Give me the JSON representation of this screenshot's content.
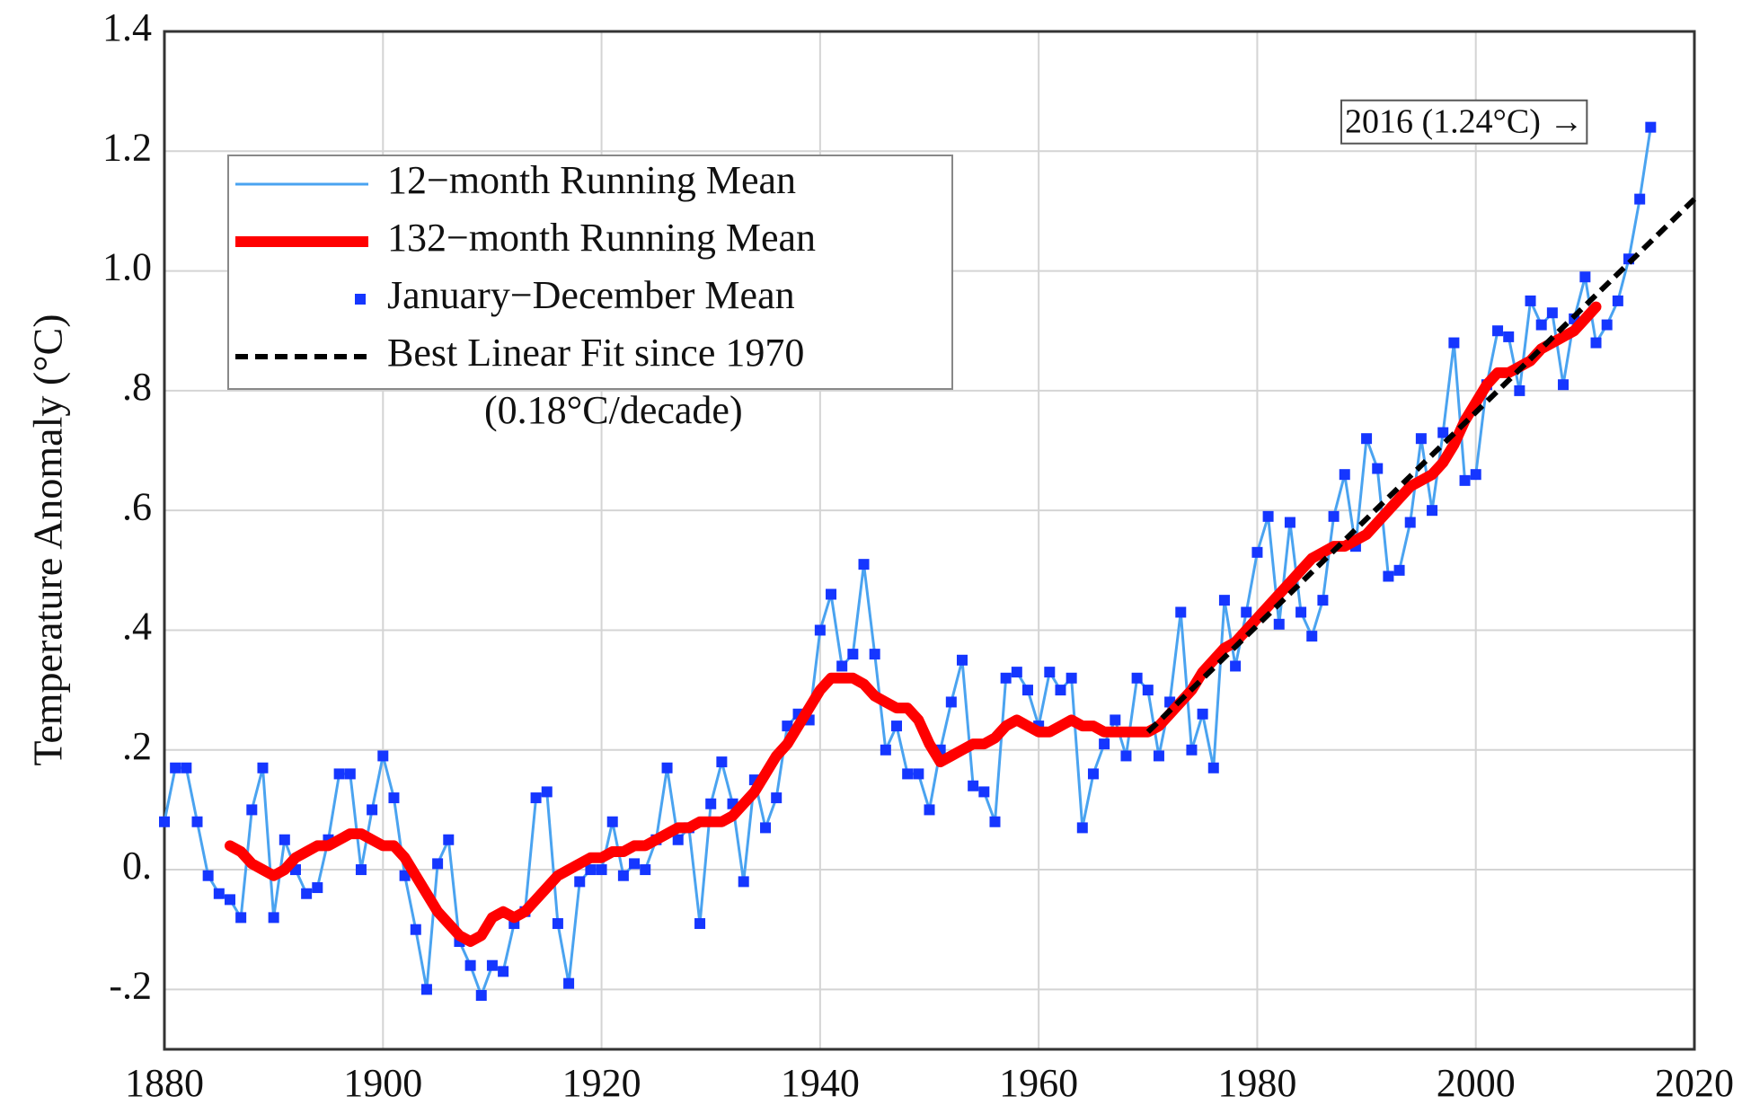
{
  "chart_data": {
    "type": "line",
    "y_label": "Temperature Anomaly (°C)",
    "xlim": [
      1880,
      2020
    ],
    "xticks": [
      1880,
      1900,
      1920,
      1940,
      1960,
      1980,
      2000,
      2020
    ],
    "ylim": [
      -0.3,
      1.4
    ],
    "yticks": [
      {
        "value": -0.2,
        "label": "-.2"
      },
      {
        "value": 0,
        "label": "0."
      },
      {
        "value": 0.2,
        "label": ".2"
      },
      {
        "value": 0.4,
        "label": ".4"
      },
      {
        "value": 0.6,
        "label": ".6"
      },
      {
        "value": 0.8,
        "label": ".8"
      },
      {
        "value": 1.0,
        "label": "1.0"
      },
      1.2,
      1.4
    ],
    "grid": true,
    "legend": "upper left",
    "x": [
      1880,
      1881,
      1882,
      1883,
      1884,
      1885,
      1886,
      1887,
      1888,
      1889,
      1890,
      1891,
      1892,
      1893,
      1894,
      1895,
      1896,
      1897,
      1898,
      1899,
      1900,
      1901,
      1902,
      1903,
      1904,
      1905,
      1906,
      1907,
      1908,
      1909,
      1910,
      1911,
      1912,
      1913,
      1914,
      1915,
      1916,
      1917,
      1918,
      1919,
      1920,
      1921,
      1922,
      1923,
      1924,
      1925,
      1926,
      1927,
      1928,
      1929,
      1930,
      1931,
      1932,
      1933,
      1934,
      1935,
      1936,
      1937,
      1938,
      1939,
      1940,
      1941,
      1942,
      1943,
      1944,
      1945,
      1946,
      1947,
      1948,
      1949,
      1950,
      1951,
      1952,
      1953,
      1954,
      1955,
      1956,
      1957,
      1958,
      1959,
      1960,
      1961,
      1962,
      1963,
      1964,
      1965,
      1966,
      1967,
      1968,
      1969,
      1970,
      1971,
      1972,
      1973,
      1974,
      1975,
      1976,
      1977,
      1978,
      1979,
      1980,
      1981,
      1982,
      1983,
      1984,
      1985,
      1986,
      1987,
      1988,
      1989,
      1990,
      1991,
      1992,
      1993,
      1994,
      1995,
      1996,
      1997,
      1998,
      1999,
      2000,
      2001,
      2002,
      2003,
      2004,
      2005,
      2006,
      2007,
      2008,
      2009,
      2010,
      2011,
      2012,
      2013,
      2014,
      2015,
      2016
    ],
    "series": [
      {
        "name": "12−month Running Mean",
        "color": "#4aa3f0",
        "style": "line",
        "values": [
          0.08,
          0.17,
          0.17,
          0.08,
          -0.01,
          -0.04,
          -0.05,
          -0.08,
          0.1,
          0.17,
          -0.08,
          0.05,
          0.0,
          -0.04,
          -0.03,
          0.05,
          0.16,
          0.16,
          0.0,
          0.1,
          0.19,
          0.12,
          -0.01,
          -0.1,
          -0.2,
          0.01,
          0.05,
          -0.12,
          -0.16,
          -0.21,
          -0.16,
          -0.17,
          -0.09,
          -0.07,
          0.12,
          0.13,
          -0.09,
          -0.19,
          -0.02,
          0.0,
          0.0,
          0.08,
          -0.01,
          0.01,
          0.0,
          0.05,
          0.17,
          0.05,
          0.07,
          -0.09,
          0.11,
          0.18,
          0.11,
          -0.02,
          0.15,
          0.07,
          0.12,
          0.24,
          0.26,
          0.25,
          0.4,
          0.46,
          0.34,
          0.36,
          0.51,
          0.36,
          0.2,
          0.24,
          0.16,
          0.16,
          0.1,
          0.2,
          0.28,
          0.35,
          0.14,
          0.13,
          0.08,
          0.32,
          0.33,
          0.3,
          0.24,
          0.33,
          0.3,
          0.32,
          0.07,
          0.16,
          0.21,
          0.25,
          0.19,
          0.32,
          0.3,
          0.19,
          0.28,
          0.43,
          0.2,
          0.26,
          0.17,
          0.45,
          0.34,
          0.43,
          0.53,
          0.59,
          0.41,
          0.58,
          0.43,
          0.39,
          0.45,
          0.59,
          0.66,
          0.54,
          0.72,
          0.67,
          0.49,
          0.5,
          0.58,
          0.72,
          0.6,
          0.73,
          0.88,
          0.65,
          0.66,
          0.81,
          0.9,
          0.89,
          0.8,
          0.95,
          0.91,
          0.93,
          0.81,
          0.92,
          0.99,
          0.88,
          0.91,
          0.95,
          1.02,
          1.12,
          1.24
        ]
      },
      {
        "name": "132−month Running Mean",
        "color": "#ff0000",
        "style": "thick",
        "x": [
          1886,
          1887,
          1888,
          1889,
          1890,
          1891,
          1892,
          1893,
          1894,
          1895,
          1896,
          1897,
          1898,
          1899,
          1900,
          1901,
          1902,
          1903,
          1904,
          1905,
          1906,
          1907,
          1908,
          1909,
          1910,
          1911,
          1912,
          1913,
          1914,
          1915,
          1916,
          1917,
          1918,
          1919,
          1920,
          1921,
          1922,
          1923,
          1924,
          1925,
          1926,
          1927,
          1928,
          1929,
          1930,
          1931,
          1932,
          1933,
          1934,
          1935,
          1936,
          1937,
          1938,
          1939,
          1940,
          1941,
          1942,
          1943,
          1944,
          1945,
          1946,
          1947,
          1948,
          1949,
          1950,
          1951,
          1952,
          1953,
          1954,
          1955,
          1956,
          1957,
          1958,
          1959,
          1960,
          1961,
          1962,
          1963,
          1964,
          1965,
          1966,
          1967,
          1968,
          1969,
          1970,
          1971,
          1972,
          1973,
          1974,
          1975,
          1976,
          1977,
          1978,
          1979,
          1980,
          1981,
          1982,
          1983,
          1984,
          1985,
          1986,
          1987,
          1988,
          1989,
          1990,
          1991,
          1992,
          1993,
          1994,
          1995,
          1996,
          1997,
          1998,
          1999,
          2000,
          2001,
          2002,
          2003,
          2004,
          2005,
          2006,
          2007,
          2008,
          2009,
          2010,
          2011
        ],
        "values": [
          0.04,
          0.03,
          0.01,
          0.0,
          -0.01,
          0.0,
          0.02,
          0.03,
          0.04,
          0.04,
          0.05,
          0.06,
          0.06,
          0.05,
          0.04,
          0.04,
          0.02,
          -0.01,
          -0.04,
          -0.07,
          -0.09,
          -0.11,
          -0.12,
          -0.11,
          -0.08,
          -0.07,
          -0.08,
          -0.07,
          -0.05,
          -0.03,
          -0.01,
          0.0,
          0.01,
          0.02,
          0.02,
          0.03,
          0.03,
          0.04,
          0.04,
          0.05,
          0.06,
          0.07,
          0.07,
          0.08,
          0.08,
          0.08,
          0.09,
          0.11,
          0.13,
          0.16,
          0.19,
          0.21,
          0.24,
          0.27,
          0.3,
          0.32,
          0.32,
          0.32,
          0.31,
          0.29,
          0.28,
          0.27,
          0.27,
          0.25,
          0.21,
          0.18,
          0.19,
          0.2,
          0.21,
          0.21,
          0.22,
          0.24,
          0.25,
          0.24,
          0.23,
          0.23,
          0.24,
          0.25,
          0.24,
          0.24,
          0.23,
          0.23,
          0.23,
          0.23,
          0.23,
          0.24,
          0.26,
          0.28,
          0.3,
          0.33,
          0.35,
          0.37,
          0.38,
          0.4,
          0.42,
          0.44,
          0.46,
          0.48,
          0.5,
          0.52,
          0.53,
          0.54,
          0.54,
          0.55,
          0.56,
          0.58,
          0.6,
          0.62,
          0.64,
          0.65,
          0.66,
          0.68,
          0.71,
          0.75,
          0.78,
          0.81,
          0.83,
          0.83,
          0.84,
          0.85,
          0.87,
          0.88,
          0.89,
          0.9,
          0.92,
          0.94
        ]
      },
      {
        "name": "January−December Mean",
        "color": "#1536ff",
        "style": "marker",
        "values": [
          0.08,
          0.17,
          0.17,
          0.08,
          -0.01,
          -0.04,
          -0.05,
          -0.08,
          0.1,
          0.17,
          -0.08,
          0.05,
          0.0,
          -0.04,
          -0.03,
          0.05,
          0.16,
          0.16,
          0.0,
          0.1,
          0.19,
          0.12,
          -0.01,
          -0.1,
          -0.2,
          0.01,
          0.05,
          -0.12,
          -0.16,
          -0.21,
          -0.16,
          -0.17,
          -0.09,
          -0.07,
          0.12,
          0.13,
          -0.09,
          -0.19,
          -0.02,
          0.0,
          0.0,
          0.08,
          -0.01,
          0.01,
          0.0,
          0.05,
          0.17,
          0.05,
          0.07,
          -0.09,
          0.11,
          0.18,
          0.11,
          -0.02,
          0.15,
          0.07,
          0.12,
          0.24,
          0.26,
          0.25,
          0.4,
          0.46,
          0.34,
          0.36,
          0.51,
          0.36,
          0.2,
          0.24,
          0.16,
          0.16,
          0.1,
          0.2,
          0.28,
          0.35,
          0.14,
          0.13,
          0.08,
          0.32,
          0.33,
          0.3,
          0.24,
          0.33,
          0.3,
          0.32,
          0.07,
          0.16,
          0.21,
          0.25,
          0.19,
          0.32,
          0.3,
          0.19,
          0.28,
          0.43,
          0.2,
          0.26,
          0.17,
          0.45,
          0.34,
          0.43,
          0.53,
          0.59,
          0.41,
          0.58,
          0.43,
          0.39,
          0.45,
          0.59,
          0.66,
          0.54,
          0.72,
          0.67,
          0.49,
          0.5,
          0.58,
          0.72,
          0.6,
          0.73,
          0.88,
          0.65,
          0.66,
          0.81,
          0.9,
          0.89,
          0.8,
          0.95,
          0.91,
          0.93,
          0.81,
          0.92,
          0.99,
          0.88,
          0.91,
          0.95,
          1.02,
          1.12,
          1.24
        ]
      },
      {
        "name": "Best Linear Fit since 1970",
        "color": "#000000",
        "style": "dashed",
        "x": [
          1970,
          2020
        ],
        "values": [
          0.23,
          1.12
        ]
      }
    ],
    "annotations": [
      "(0.18°C/decade)",
      "2016 (1.24°C) →"
    ]
  }
}
